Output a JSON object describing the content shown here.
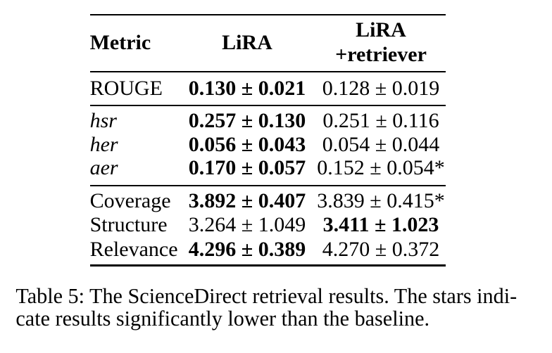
{
  "colors": {
    "background": "#ffffff",
    "text": "#000000",
    "rule": "#000000"
  },
  "table": {
    "header": {
      "metric": "Metric",
      "lira": "LiRA",
      "lira_retriever_line1": "LiRA",
      "lira_retriever_line2": "+retriever"
    },
    "columns": [
      "Metric",
      "LiRA",
      "LiRA +retriever"
    ],
    "rows": [
      {
        "metric": "ROUGE",
        "metric_italic": false,
        "lira": "0.130 ± 0.021",
        "lira_bold": true,
        "lira_retriever": "0.128 ± 0.019",
        "lira_retriever_bold": false
      },
      {
        "metric": "hsr",
        "metric_italic": true,
        "lira": "0.257 ± 0.130",
        "lira_bold": true,
        "lira_retriever": "0.251 ± 0.116",
        "lira_retriever_bold": false
      },
      {
        "metric": "her",
        "metric_italic": true,
        "lira": "0.056 ± 0.043",
        "lira_bold": true,
        "lira_retriever": "0.054 ± 0.044",
        "lira_retriever_bold": false
      },
      {
        "metric": "aer",
        "metric_italic": true,
        "lira": "0.170 ± 0.057",
        "lira_bold": true,
        "lira_retriever": "0.152 ± 0.054*",
        "lira_retriever_bold": false
      },
      {
        "metric": "Coverage",
        "metric_italic": false,
        "lira": "3.892 ± 0.407",
        "lira_bold": true,
        "lira_retriever": "3.839 ± 0.415*",
        "lira_retriever_bold": false
      },
      {
        "metric": "Structure",
        "metric_italic": false,
        "lira": "3.264 ± 1.049",
        "lira_bold": false,
        "lira_retriever": "3.411 ± 1.023",
        "lira_retriever_bold": true
      },
      {
        "metric": "Relevance",
        "metric_italic": false,
        "lira": "4.296 ± 0.389",
        "lira_bold": true,
        "lira_retriever": "4.270 ± 0.372",
        "lira_retriever_bold": false
      }
    ]
  },
  "caption": {
    "line1": "Table 5: The ScienceDirect retrieval results. The stars indi-",
    "line2": "cate results significantly lower than the baseline.",
    "full": "Table 5: The ScienceDirect retrieval results. The stars indicate results significantly lower than the baseline."
  }
}
